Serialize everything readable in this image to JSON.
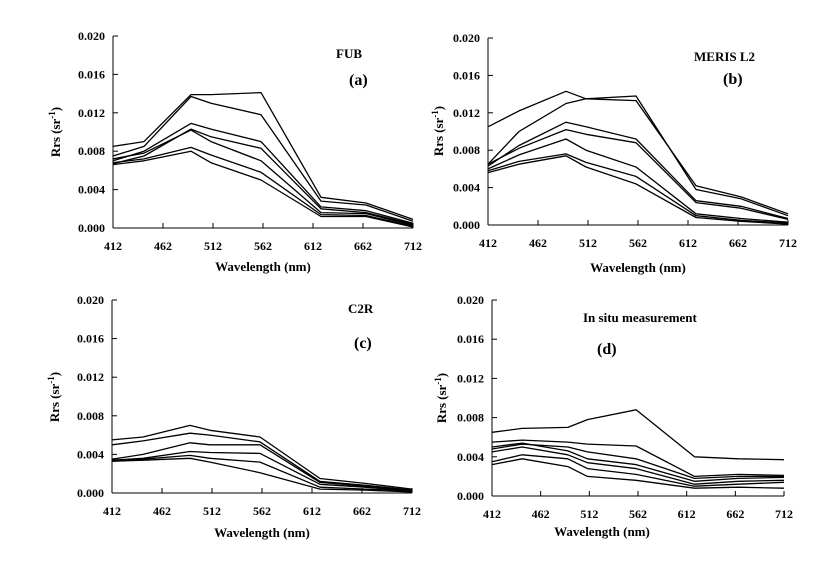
{
  "chart_data": [
    {
      "type": "line",
      "panel_label": "(a)",
      "annotation": "FUB",
      "xlabel": "Wavelength (nm)",
      "ylabel": "Rrs (sr-1)",
      "ylabel_main": "Rrs",
      "ylabel_unit": "(sr",
      "ylabel_exp": "-1",
      "ylabel_close": ")",
      "xlim": [
        412,
        712
      ],
      "ylim": [
        0,
        0.02
      ],
      "x_ticks": [
        "412",
        "462",
        "512",
        "562",
        "612",
        "662",
        "712"
      ],
      "y_ticks": [
        "0.000",
        "0.004",
        "0.008",
        "0.012",
        "0.016",
        "0.020"
      ],
      "x": [
        412,
        443,
        490,
        510,
        560,
        620,
        665,
        712
      ],
      "series": [
        {
          "values": [
            0.0085,
            0.009,
            0.0139,
            0.0139,
            0.0141,
            0.0032,
            0.0026,
            0.0009
          ]
        },
        {
          "values": [
            0.0075,
            0.0085,
            0.0137,
            0.013,
            0.0118,
            0.0028,
            0.0024,
            0.0007
          ]
        },
        {
          "values": [
            0.007,
            0.008,
            0.0109,
            0.0103,
            0.009,
            0.0022,
            0.0018,
            0.0005
          ]
        },
        {
          "values": [
            0.0067,
            0.0075,
            0.0103,
            0.0095,
            0.0083,
            0.002,
            0.0016,
            0.0004
          ]
        },
        {
          "values": [
            0.0072,
            0.0078,
            0.0102,
            0.009,
            0.007,
            0.0016,
            0.0015,
            0.0003
          ]
        },
        {
          "values": [
            0.0068,
            0.0072,
            0.0084,
            0.0076,
            0.0058,
            0.0014,
            0.0013,
            0.0002
          ]
        },
        {
          "values": [
            0.0066,
            0.007,
            0.008,
            0.0068,
            0.005,
            0.0012,
            0.0012,
            0.0001
          ]
        }
      ]
    },
    {
      "type": "line",
      "panel_label": "(b)",
      "annotation": "MERIS L2",
      "xlabel": "Wavelength (nm)",
      "ylabel": "Rrs (sr-1)",
      "ylabel_main": "Rrs",
      "ylabel_unit": "(sr",
      "ylabel_exp": "-1",
      "ylabel_close": ")",
      "xlim": [
        412,
        712
      ],
      "ylim": [
        0,
        0.02
      ],
      "x_ticks": [
        "412",
        "462",
        "512",
        "562",
        "612",
        "662",
        "712"
      ],
      "y_ticks": [
        "0.000",
        "0.004",
        "0.008",
        "0.012",
        "0.016",
        "0.020"
      ],
      "x": [
        412,
        443,
        490,
        510,
        560,
        620,
        665,
        712
      ],
      "series": [
        {
          "values": [
            0.0105,
            0.0122,
            0.0143,
            0.0135,
            0.0133,
            0.0042,
            0.003,
            0.0012
          ]
        },
        {
          "values": [
            0.0065,
            0.01,
            0.013,
            0.0135,
            0.0138,
            0.0038,
            0.0028,
            0.001
          ]
        },
        {
          "values": [
            0.0063,
            0.0085,
            0.011,
            0.0105,
            0.0092,
            0.0026,
            0.002,
            0.0007
          ]
        },
        {
          "values": [
            0.0065,
            0.0082,
            0.0102,
            0.0097,
            0.0088,
            0.0024,
            0.0018,
            0.0006
          ]
        },
        {
          "values": [
            0.006,
            0.0075,
            0.0092,
            0.008,
            0.0062,
            0.0012,
            0.0007,
            0.0003
          ]
        },
        {
          "values": [
            0.0058,
            0.0068,
            0.0076,
            0.0067,
            0.0052,
            0.001,
            0.0005,
            0.0002
          ]
        },
        {
          "values": [
            0.0056,
            0.0065,
            0.0074,
            0.0062,
            0.0044,
            0.0008,
            0.0004,
            0.0001
          ]
        }
      ]
    },
    {
      "type": "line",
      "panel_label": "(c)",
      "annotation": "C2R",
      "xlabel": "Wavelength (nm)",
      "ylabel": "Rrs (sr-1)",
      "ylabel_main": "Rrs",
      "ylabel_unit": "(sr",
      "ylabel_exp": "-1",
      "ylabel_close": ")",
      "xlim": [
        412,
        712
      ],
      "ylim": [
        0,
        0.02
      ],
      "x_ticks": [
        "412",
        "462",
        "512",
        "562",
        "612",
        "662",
        "712"
      ],
      "y_ticks": [
        "0.000",
        "0.004",
        "0.008",
        "0.012",
        "0.016",
        "0.020"
      ],
      "x": [
        412,
        443,
        490,
        510,
        560,
        620,
        665,
        712
      ],
      "series": [
        {
          "values": [
            0.0055,
            0.0058,
            0.007,
            0.0065,
            0.0058,
            0.0015,
            0.001,
            0.0004
          ]
        },
        {
          "values": [
            0.005,
            0.0054,
            0.0062,
            0.006,
            0.0053,
            0.0012,
            0.0008,
            0.0003
          ]
        },
        {
          "values": [
            0.0035,
            0.004,
            0.0052,
            0.005,
            0.005,
            0.0011,
            0.0007,
            0.0003
          ]
        },
        {
          "values": [
            0.0034,
            0.0036,
            0.0043,
            0.0042,
            0.0041,
            0.0009,
            0.0006,
            0.0002
          ]
        },
        {
          "values": [
            0.0033,
            0.0035,
            0.0039,
            0.0036,
            0.0032,
            0.0006,
            0.0004,
            0.0002
          ]
        },
        {
          "values": [
            0.0033,
            0.0034,
            0.0036,
            0.0032,
            0.0021,
            0.0004,
            0.0003,
            0.0001
          ]
        }
      ]
    },
    {
      "type": "line",
      "panel_label": "(d)",
      "annotation": "In situ measurement",
      "xlabel": "Wavelength (nm)",
      "ylabel": "Rrs (sr-1)",
      "ylabel_main": "Rrs",
      "ylabel_unit": "(sr",
      "ylabel_exp": "-1",
      "ylabel_close": ")",
      "xlim": [
        412,
        712
      ],
      "ylim": [
        0,
        0.02
      ],
      "x_ticks": [
        "412",
        "462",
        "512",
        "562",
        "612",
        "662",
        "712"
      ],
      "y_ticks": [
        "0.000",
        "0.004",
        "0.008",
        "0.012",
        "0.016",
        "0.020"
      ],
      "x": [
        412,
        443,
        490,
        510,
        560,
        620,
        665,
        712
      ],
      "series": [
        {
          "values": [
            0.0065,
            0.0069,
            0.007,
            0.0078,
            0.0088,
            0.004,
            0.0038,
            0.0037
          ]
        },
        {
          "values": [
            0.0055,
            0.0057,
            0.0055,
            0.0053,
            0.0051,
            0.002,
            0.0022,
            0.0021
          ]
        },
        {
          "values": [
            0.0048,
            0.0053,
            0.005,
            0.0045,
            0.0038,
            0.0018,
            0.002,
            0.002
          ]
        },
        {
          "values": [
            0.005,
            0.0054,
            0.0046,
            0.0038,
            0.0032,
            0.0015,
            0.0018,
            0.0019
          ]
        },
        {
          "values": [
            0.0045,
            0.005,
            0.0042,
            0.0034,
            0.0028,
            0.0012,
            0.0015,
            0.0016
          ]
        },
        {
          "values": [
            0.0035,
            0.0042,
            0.0038,
            0.0028,
            0.0022,
            0.001,
            0.0012,
            0.0014
          ]
        },
        {
          "values": [
            0.0032,
            0.0038,
            0.003,
            0.002,
            0.0016,
            0.0008,
            0.0009,
            0.0008
          ]
        }
      ]
    }
  ]
}
